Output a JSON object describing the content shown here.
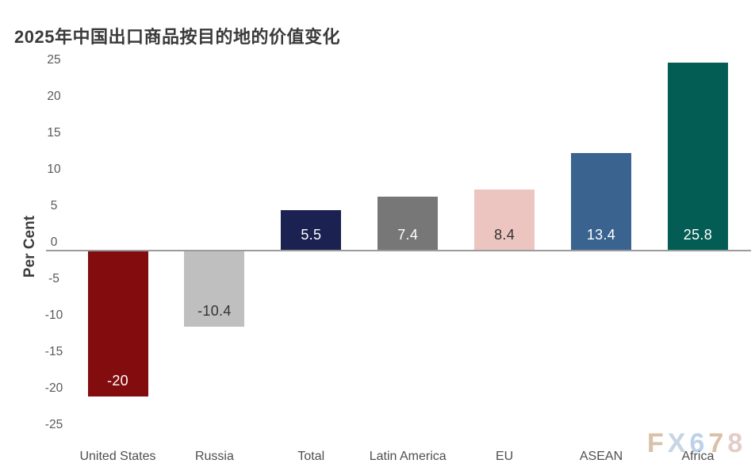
{
  "chart_data": {
    "type": "bar",
    "title": "2025年中国出口商品按目的地的价值变化",
    "ylabel": "Per Cent",
    "xlabel": "",
    "categories": [
      "United States",
      "Russia",
      "Total",
      "Latin America",
      "EU",
      "ASEAN",
      "Africa"
    ],
    "values": [
      -20,
      -10.4,
      5.5,
      7.4,
      8.4,
      13.4,
      25.8
    ],
    "value_labels": [
      "-20",
      "-10.4",
      "5.5",
      "7.4",
      "8.4",
      "13.4",
      "25.8"
    ],
    "bar_colors": [
      "#830c0f",
      "#bfbfbf",
      "#1b2150",
      "#777777",
      "#ecc5c0",
      "#3a648f",
      "#045d55"
    ],
    "value_label_colors": [
      "#ffffff",
      "#333333",
      "#ffffff",
      "#ffffff",
      "#333333",
      "#ffffff",
      "#ffffff"
    ],
    "ylim": [
      -25,
      25
    ],
    "yticks": [
      25,
      20,
      15,
      10,
      5,
      0,
      -5,
      -10,
      -15,
      -20,
      -25
    ],
    "grid": false,
    "legend": null,
    "axis_line_color": "#9b9b9b",
    "tick_color": "#595959",
    "category_color": "#4f4f4f",
    "title_color": "#3a3a3a"
  },
  "watermark": {
    "text": "FX678",
    "letters": [
      {
        "ch": "F",
        "color": "#d9c0a9"
      },
      {
        "ch": "X",
        "color": "#c6d4e4"
      },
      {
        "ch": "6",
        "color": "#bdd2e8"
      },
      {
        "ch": "7",
        "color": "#d9c0a9"
      },
      {
        "ch": "8",
        "color": "#e2cdc9"
      }
    ]
  }
}
